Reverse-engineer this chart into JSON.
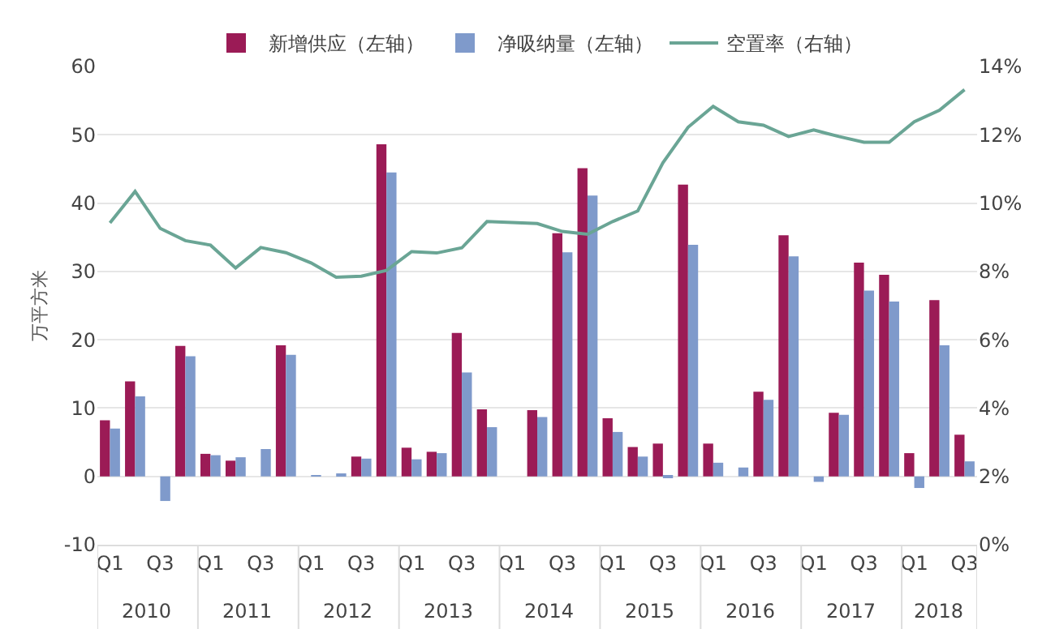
{
  "chart_data": {
    "type": "bar",
    "ylabel": "万平方米",
    "categories": [
      "Q1",
      null,
      "Q3",
      null,
      "Q1",
      null,
      "Q3",
      null,
      "Q1",
      null,
      "Q3",
      null,
      "Q1",
      null,
      "Q3",
      null,
      "Q1",
      null,
      "Q3",
      null,
      "Q1",
      null,
      "Q3",
      null,
      "Q1",
      null,
      "Q3",
      null,
      "Q1",
      null,
      "Q3",
      null,
      "Q1",
      null,
      "Q3"
    ],
    "series": [
      {
        "name": "新增供应（左轴）",
        "color": "#9b1b56",
        "values": [
          8.2,
          13.9,
          null,
          19.1,
          3.3,
          2.3,
          null,
          19.2,
          null,
          null,
          2.9,
          48.6,
          4.2,
          3.6,
          21,
          9.8,
          null,
          9.7,
          35.6,
          45.1,
          8.5,
          4.3,
          4.8,
          42.7,
          4.8,
          null,
          12.4,
          35.3,
          null,
          9.3,
          31.3,
          29.5,
          3.4,
          25.8,
          6.1
        ]
      },
      {
        "name": "净吸纳量（左轴）",
        "color": "#7f9acb",
        "values": [
          7.0,
          11.7,
          -3.6,
          17.6,
          3.1,
          2.8,
          4.0,
          17.8,
          0.2,
          0.4,
          2.6,
          44.5,
          2.5,
          3.4,
          15.2,
          7.2,
          null,
          8.7,
          32.8,
          41.1,
          6.5,
          2.9,
          -0.2,
          33.9,
          2.0,
          1.3,
          11.2,
          32.2,
          -0.8,
          9.0,
          27.2,
          25.6,
          -1.7,
          19.2,
          2.2
        ]
      },
      {
        "name": "空置率（右轴）",
        "type": "line",
        "axis": "y2",
        "color": "#6aa595",
        "values": [
          9.42,
          10.34,
          9.26,
          8.9,
          8.77,
          8.1,
          8.7,
          8.55,
          8.25,
          7.83,
          7.86,
          8.03,
          8.58,
          8.54,
          8.69,
          9.46,
          9.43,
          9.4,
          9.17,
          9.09,
          9.46,
          9.77,
          11.18,
          12.22,
          12.83,
          12.38,
          12.28,
          11.95,
          12.14,
          11.95,
          11.78,
          11.78,
          12.38,
          12.72,
          13.32
        ]
      }
    ],
    "ylim": [
      -10,
      60
    ],
    "yticks": [
      -10,
      0,
      10,
      20,
      30,
      40,
      50,
      60
    ],
    "y2lim": [
      0,
      14
    ],
    "y2ticks": [
      {
        "value": 0,
        "label": "0%"
      },
      {
        "value": 2,
        "label": "2%"
      },
      {
        "value": 4,
        "label": "4%"
      },
      {
        "value": 6,
        "label": "6%"
      },
      {
        "value": 8,
        "label": "8%"
      },
      {
        "value": 10,
        "label": "10%"
      },
      {
        "value": 12,
        "label": "12%"
      },
      {
        "value": 14,
        "label": "14%"
      }
    ],
    "annotations": [
      "2010",
      "2011",
      "2012",
      "2013",
      "2014",
      "2015",
      "2016",
      "2017",
      "2018"
    ],
    "grid": "y",
    "legend": "top",
    "marker": "none",
    "line_style": "solid"
  }
}
